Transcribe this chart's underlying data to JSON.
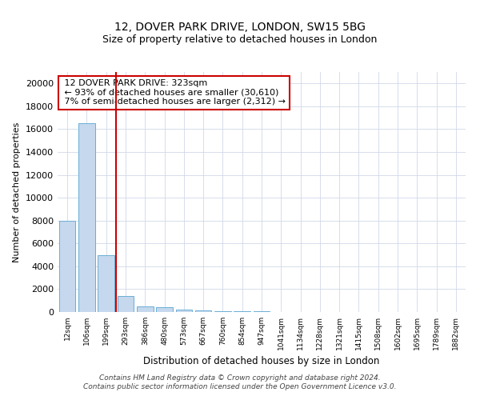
{
  "title1": "12, DOVER PARK DRIVE, LONDON, SW15 5BG",
  "title2": "Size of property relative to detached houses in London",
  "xlabel": "Distribution of detached houses by size in London",
  "ylabel": "Number of detached properties",
  "bar_labels": [
    "12sqm",
    "106sqm",
    "199sqm",
    "293sqm",
    "386sqm",
    "480sqm",
    "573sqm",
    "667sqm",
    "760sqm",
    "854sqm",
    "947sqm",
    "1041sqm",
    "1134sqm",
    "1228sqm",
    "1321sqm",
    "1415sqm",
    "1508sqm",
    "1602sqm",
    "1695sqm",
    "1789sqm",
    "1882sqm"
  ],
  "bar_values": [
    8000,
    16500,
    5000,
    1400,
    500,
    450,
    200,
    150,
    100,
    80,
    50,
    0,
    0,
    0,
    0,
    0,
    0,
    0,
    0,
    0,
    0
  ],
  "bar_color": "#c5d8ed",
  "bar_edge_color": "#6baed6",
  "property_line_x": 2.5,
  "property_line_label": "12 DOVER PARK DRIVE: 323sqm",
  "pct_smaller": 93,
  "n_smaller": 30610,
  "pct_larger": 7,
  "n_larger": 2312,
  "vline_color": "#cc0000",
  "annotation_box_color": "#cc0000",
  "ylim": [
    0,
    21000
  ],
  "yticks": [
    0,
    2000,
    4000,
    6000,
    8000,
    10000,
    12000,
    14000,
    16000,
    18000,
    20000
  ],
  "footer1": "Contains HM Land Registry data © Crown copyright and database right 2024.",
  "footer2": "Contains public sector information licensed under the Open Government Licence v3.0."
}
